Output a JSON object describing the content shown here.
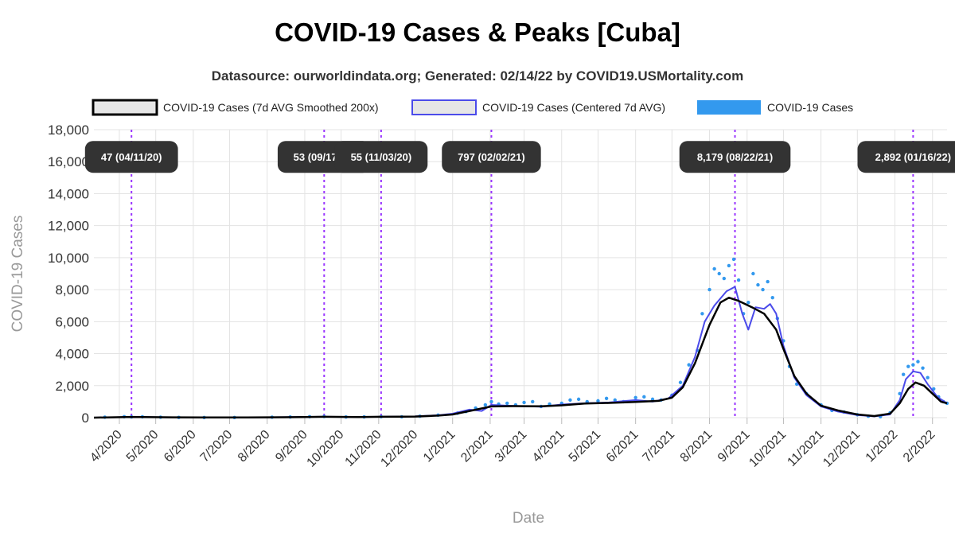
{
  "title": "COVID-19 Cases & Peaks [Cuba]",
  "subtitle": "Datasource: ourworldindata.org; Generated: 02/14/22 by COVID19.USMortality.com",
  "colors": {
    "smoothed": "#000000",
    "centered": "#4b4bea",
    "cases": "#3399ee",
    "peak_line": "#9933ff",
    "peak_label_bg": "#333333",
    "grid": "#e3e3e3"
  },
  "chart_data": {
    "type": "line",
    "title": "COVID-19 Cases & Peaks [Cuba]",
    "xlabel": "Date",
    "ylabel": "COVID-19 Cases",
    "ylim": [
      0,
      18000
    ],
    "yticks": [
      0,
      2000,
      4000,
      6000,
      8000,
      10000,
      12000,
      14000,
      16000,
      18000
    ],
    "ytick_labels": [
      "0",
      "2,000",
      "4,000",
      "6,000",
      "8,000",
      "10,000",
      "12,000",
      "14,000",
      "16,000",
      "18,000"
    ],
    "xlim": [
      "2020-03-11",
      "2022-02-13"
    ],
    "xticks": [
      "2020-04-01",
      "2020-05-01",
      "2020-06-01",
      "2020-07-01",
      "2020-08-01",
      "2020-09-01",
      "2020-10-01",
      "2020-11-01",
      "2020-12-01",
      "2021-01-01",
      "2021-02-01",
      "2021-03-01",
      "2021-04-01",
      "2021-05-01",
      "2021-06-01",
      "2021-07-01",
      "2021-08-01",
      "2021-09-01",
      "2021-10-01",
      "2021-11-01",
      "2021-12-01",
      "2022-01-01",
      "2022-02-01"
    ],
    "xtick_labels": [
      "4/2020",
      "5/2020",
      "6/2020",
      "7/2020",
      "8/2020",
      "9/2020",
      "10/2020",
      "11/2020",
      "12/2020",
      "1/2021",
      "2/2021",
      "3/2021",
      "4/2021",
      "5/2021",
      "6/2021",
      "7/2021",
      "8/2021",
      "9/2021",
      "10/2021",
      "11/2021",
      "12/2021",
      "1/2022",
      "2/2022"
    ],
    "grid": true,
    "legend_position": "top",
    "legend": [
      "COVID-19 Cases (7d AVG Smoothed 200x)",
      "COVID-19 Cases (Centered 7d AVG)",
      "COVID-19 Cases"
    ],
    "series": [
      {
        "name": "COVID-19 Cases (7d AVG Smoothed 200x)",
        "style": "smoothed",
        "points": [
          [
            "2020-03-11",
            0
          ],
          [
            "2020-04-11",
            47
          ],
          [
            "2020-05-15",
            20
          ],
          [
            "2020-06-15",
            10
          ],
          [
            "2020-07-15",
            8
          ],
          [
            "2020-08-15",
            25
          ],
          [
            "2020-09-17",
            53
          ],
          [
            "2020-10-15",
            40
          ],
          [
            "2020-11-03",
            55
          ],
          [
            "2020-12-01",
            70
          ],
          [
            "2020-12-20",
            130
          ],
          [
            "2021-01-01",
            200
          ],
          [
            "2021-01-15",
            420
          ],
          [
            "2021-02-02",
            700
          ],
          [
            "2021-02-20",
            720
          ],
          [
            "2021-03-15",
            710
          ],
          [
            "2021-04-01",
            770
          ],
          [
            "2021-04-20",
            880
          ],
          [
            "2021-05-10",
            920
          ],
          [
            "2021-06-01",
            980
          ],
          [
            "2021-06-20",
            1050
          ],
          [
            "2021-07-01",
            1250
          ],
          [
            "2021-07-10",
            1900
          ],
          [
            "2021-07-20",
            3400
          ],
          [
            "2021-08-01",
            5800
          ],
          [
            "2021-08-10",
            7200
          ],
          [
            "2021-08-17",
            7500
          ],
          [
            "2021-08-25",
            7300
          ],
          [
            "2021-09-05",
            6900
          ],
          [
            "2021-09-15",
            6500
          ],
          [
            "2021-09-25",
            5500
          ],
          [
            "2021-10-01",
            4300
          ],
          [
            "2021-10-10",
            2600
          ],
          [
            "2021-10-20",
            1500
          ],
          [
            "2021-11-01",
            750
          ],
          [
            "2021-11-15",
            450
          ],
          [
            "2021-12-01",
            200
          ],
          [
            "2021-12-15",
            100
          ],
          [
            "2021-12-28",
            250
          ],
          [
            "2022-01-05",
            900
          ],
          [
            "2022-01-12",
            1800
          ],
          [
            "2022-01-18",
            2200
          ],
          [
            "2022-01-25",
            2000
          ],
          [
            "2022-02-01",
            1500
          ],
          [
            "2022-02-08",
            1000
          ],
          [
            "2022-02-13",
            900
          ]
        ]
      },
      {
        "name": "COVID-19 Cases (Centered 7d AVG)",
        "style": "centered",
        "points": [
          [
            "2020-03-11",
            0
          ],
          [
            "2020-04-11",
            47
          ],
          [
            "2020-05-15",
            20
          ],
          [
            "2020-06-15",
            8
          ],
          [
            "2020-07-15",
            6
          ],
          [
            "2020-08-15",
            30
          ],
          [
            "2020-09-17",
            53
          ],
          [
            "2020-10-15",
            35
          ],
          [
            "2020-11-03",
            55
          ],
          [
            "2020-12-01",
            80
          ],
          [
            "2020-12-20",
            150
          ],
          [
            "2021-01-01",
            250
          ],
          [
            "2021-01-15",
            500
          ],
          [
            "2021-01-25",
            420
          ],
          [
            "2021-02-02",
            797
          ],
          [
            "2021-02-20",
            730
          ],
          [
            "2021-03-15",
            680
          ],
          [
            "2021-04-01",
            820
          ],
          [
            "2021-04-20",
            900
          ],
          [
            "2021-05-10",
            950
          ],
          [
            "2021-06-01",
            1100
          ],
          [
            "2021-06-15",
            1000
          ],
          [
            "2021-06-28",
            1200
          ],
          [
            "2021-07-10",
            2000
          ],
          [
            "2021-07-20",
            3800
          ],
          [
            "2021-07-28",
            6000
          ],
          [
            "2021-08-05",
            7000
          ],
          [
            "2021-08-15",
            7900
          ],
          [
            "2021-08-22",
            8179
          ],
          [
            "2021-08-28",
            6500
          ],
          [
            "2021-09-02",
            5500
          ],
          [
            "2021-09-08",
            6900
          ],
          [
            "2021-09-15",
            6800
          ],
          [
            "2021-09-20",
            7100
          ],
          [
            "2021-09-25",
            6500
          ],
          [
            "2021-10-01",
            4500
          ],
          [
            "2021-10-10",
            2500
          ],
          [
            "2021-10-20",
            1400
          ],
          [
            "2021-11-01",
            700
          ],
          [
            "2021-11-15",
            380
          ],
          [
            "2021-12-01",
            160
          ],
          [
            "2021-12-15",
            80
          ],
          [
            "2021-12-28",
            200
          ],
          [
            "2022-01-05",
            1100
          ],
          [
            "2022-01-10",
            2400
          ],
          [
            "2022-01-16",
            2892
          ],
          [
            "2022-01-22",
            2800
          ],
          [
            "2022-01-28",
            2100
          ],
          [
            "2022-02-05",
            1300
          ],
          [
            "2022-02-13",
            900
          ]
        ]
      },
      {
        "name": "COVID-19 Cases",
        "style": "cases",
        "points": [
          [
            "2020-03-20",
            30
          ],
          [
            "2020-04-05",
            60
          ],
          [
            "2020-04-11",
            47
          ],
          [
            "2020-04-20",
            55
          ],
          [
            "2020-05-05",
            30
          ],
          [
            "2020-05-20",
            15
          ],
          [
            "2020-06-10",
            10
          ],
          [
            "2020-07-05",
            8
          ],
          [
            "2020-08-05",
            30
          ],
          [
            "2020-08-20",
            40
          ],
          [
            "2020-09-05",
            60
          ],
          [
            "2020-09-17",
            70
          ],
          [
            "2020-10-05",
            40
          ],
          [
            "2020-10-20",
            45
          ],
          [
            "2020-11-03",
            60
          ],
          [
            "2020-11-20",
            55
          ],
          [
            "2020-12-05",
            90
          ],
          [
            "2020-12-20",
            160
          ],
          [
            "2021-01-05",
            280
          ],
          [
            "2021-01-12",
            380
          ],
          [
            "2021-01-20",
            600
          ],
          [
            "2021-01-28",
            800
          ],
          [
            "2021-02-02",
            1000
          ],
          [
            "2021-02-08",
            850
          ],
          [
            "2021-02-15",
            900
          ],
          [
            "2021-02-22",
            800
          ],
          [
            "2021-03-01",
            950
          ],
          [
            "2021-03-08",
            1000
          ],
          [
            "2021-03-15",
            700
          ],
          [
            "2021-03-22",
            850
          ],
          [
            "2021-04-01",
            900
          ],
          [
            "2021-04-08",
            1100
          ],
          [
            "2021-04-15",
            1150
          ],
          [
            "2021-04-22",
            1000
          ],
          [
            "2021-05-01",
            1050
          ],
          [
            "2021-05-08",
            1200
          ],
          [
            "2021-05-15",
            1100
          ],
          [
            "2021-05-22",
            1000
          ],
          [
            "2021-06-01",
            1250
          ],
          [
            "2021-06-08",
            1300
          ],
          [
            "2021-06-15",
            1150
          ],
          [
            "2021-06-22",
            1100
          ],
          [
            "2021-07-01",
            1400
          ],
          [
            "2021-07-08",
            2200
          ],
          [
            "2021-07-15",
            3300
          ],
          [
            "2021-07-22",
            4200
          ],
          [
            "2021-07-26",
            6500
          ],
          [
            "2021-08-01",
            8000
          ],
          [
            "2021-08-05",
            9300
          ],
          [
            "2021-08-09",
            9000
          ],
          [
            "2021-08-13",
            8700
          ],
          [
            "2021-08-17",
            9500
          ],
          [
            "2021-08-21",
            9900
          ],
          [
            "2021-08-25",
            8600
          ],
          [
            "2021-08-29",
            6500
          ],
          [
            "2021-09-02",
            7200
          ],
          [
            "2021-09-06",
            9000
          ],
          [
            "2021-09-10",
            8300
          ],
          [
            "2021-09-14",
            8000
          ],
          [
            "2021-09-18",
            8500
          ],
          [
            "2021-09-22",
            7500
          ],
          [
            "2021-09-26",
            6200
          ],
          [
            "2021-10-01",
            4800
          ],
          [
            "2021-10-06",
            3200
          ],
          [
            "2021-10-12",
            2100
          ],
          [
            "2021-10-20",
            1500
          ],
          [
            "2021-11-01",
            800
          ],
          [
            "2021-11-10",
            450
          ],
          [
            "2021-11-20",
            350
          ],
          [
            "2021-12-01",
            180
          ],
          [
            "2021-12-10",
            90
          ],
          [
            "2021-12-20",
            60
          ],
          [
            "2021-12-28",
            300
          ],
          [
            "2022-01-05",
            1500
          ],
          [
            "2022-01-08",
            2700
          ],
          [
            "2022-01-12",
            3200
          ],
          [
            "2022-01-16",
            3300
          ],
          [
            "2022-01-20",
            3500
          ],
          [
            "2022-01-24",
            3100
          ],
          [
            "2022-01-28",
            2500
          ],
          [
            "2022-02-02",
            1800
          ],
          [
            "2022-02-06",
            1300
          ],
          [
            "2022-02-10",
            1000
          ],
          [
            "2022-02-13",
            900
          ]
        ]
      }
    ],
    "peaks": [
      {
        "date": "2020-04-11",
        "label": "47 (04/11/20)"
      },
      {
        "date": "2020-09-17",
        "label": "53 (09/17/20)"
      },
      {
        "date": "2020-11-03",
        "label": "55 (11/03/20)"
      },
      {
        "date": "2021-02-02",
        "label": "797 (02/02/21)"
      },
      {
        "date": "2021-08-22",
        "label": "8,179 (08/22/21)"
      },
      {
        "date": "2022-01-16",
        "label": "2,892 (01/16/22)"
      }
    ]
  }
}
